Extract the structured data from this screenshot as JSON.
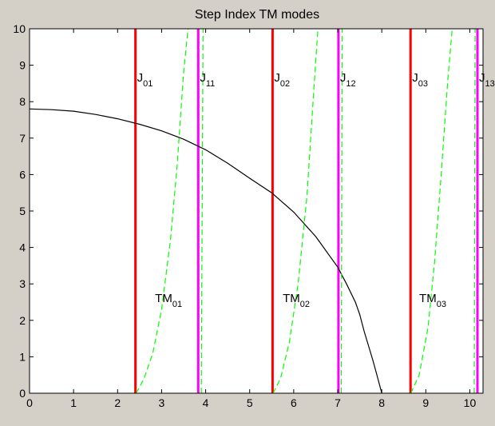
{
  "chart_data": {
    "type": "line",
    "title": "Step Index TM modes",
    "xlabel": "",
    "ylabel": "",
    "xlim": [
      0,
      10.3
    ],
    "ylim": [
      0,
      10
    ],
    "x_ticks": [
      0,
      1,
      2,
      3,
      4,
      5,
      6,
      7,
      8,
      9,
      10
    ],
    "y_ticks": [
      0,
      1,
      2,
      3,
      4,
      5,
      6,
      7,
      8,
      9,
      10
    ],
    "grid": false,
    "colors": {
      "background": "#d4d0c8",
      "plot_area": "#ffffff",
      "j0_zero_lines": "#ff0000",
      "j1_zero_lines": "#ff00ff",
      "tm_curves": "#00ff00",
      "v_circle": "#000000"
    },
    "vertical_lines": [
      {
        "x": 2.405,
        "color": "#ff0000",
        "label_main": "J",
        "label_sub": "01"
      },
      {
        "x": 3.832,
        "color": "#ff00ff",
        "label_main": "J",
        "label_sub": "11"
      },
      {
        "x": 5.52,
        "color": "#ff0000",
        "label_main": "J",
        "label_sub": "02"
      },
      {
        "x": 7.016,
        "color": "#ff00ff",
        "label_main": "J",
        "label_sub": "12"
      },
      {
        "x": 8.654,
        "color": "#ff0000",
        "label_main": "J",
        "label_sub": "03"
      },
      {
        "x": 10.173,
        "color": "#ff00ff",
        "label_main": "J",
        "label_sub": "13"
      }
    ],
    "series": [
      {
        "style": "solid",
        "color": "#000000",
        "x": [
          0,
          0.5,
          1.0,
          1.5,
          2.0,
          2.5,
          3.0,
          3.5,
          4.0,
          4.5,
          5.0,
          5.5,
          6.0,
          6.5,
          7.0,
          7.2,
          7.4,
          7.5,
          7.6,
          7.8,
          7.9,
          8.0
        ],
        "y": [
          7.8,
          7.78,
          7.74,
          7.65,
          7.53,
          7.38,
          7.2,
          6.97,
          6.68,
          6.31,
          5.9,
          5.5,
          4.97,
          4.3,
          3.46,
          3.0,
          2.5,
          2.16,
          1.7,
          0.9,
          0.45,
          0
        ]
      },
      {
        "style": "dashed",
        "color": "#00ff00",
        "x": [
          2.42,
          2.6,
          2.8,
          3.0,
          3.2,
          3.35,
          3.5,
          3.6
        ],
        "y": [
          0,
          0.4,
          1.1,
          2.3,
          4.2,
          6.2,
          8.8,
          10
        ]
      },
      {
        "style": "dashed",
        "color": "#00ff00",
        "x": [
          3.9,
          3.92,
          3.94
        ],
        "y": [
          0,
          5,
          10
        ]
      },
      {
        "style": "dashed",
        "color": "#00ff00",
        "x": [
          5.53,
          5.7,
          5.9,
          6.1,
          6.3,
          6.45,
          6.55
        ],
        "y": [
          0,
          0.4,
          1.4,
          3.0,
          5.4,
          8.2,
          10
        ]
      },
      {
        "style": "dashed",
        "color": "#00ff00",
        "x": [
          7.08,
          7.09,
          7.1
        ],
        "y": [
          0,
          5,
          10
        ]
      },
      {
        "style": "dashed",
        "color": "#00ff00",
        "x": [
          8.66,
          8.85,
          9.05,
          9.2,
          9.35,
          9.5,
          9.6
        ],
        "y": [
          0,
          0.5,
          1.8,
          3.6,
          6.0,
          8.6,
          10
        ]
      },
      {
        "style": "dashed",
        "color": "#00ff00",
        "x": [
          10.1,
          10.11,
          10.12
        ],
        "y": [
          0,
          5,
          10
        ]
      }
    ],
    "annotations": [
      {
        "x": 2.85,
        "y": 2.5,
        "main": "TM",
        "sub": "01"
      },
      {
        "x": 5.75,
        "y": 2.5,
        "main": "TM",
        "sub": "02"
      },
      {
        "x": 8.85,
        "y": 2.5,
        "main": "TM",
        "sub": "03"
      }
    ],
    "label_y": 8.55
  }
}
